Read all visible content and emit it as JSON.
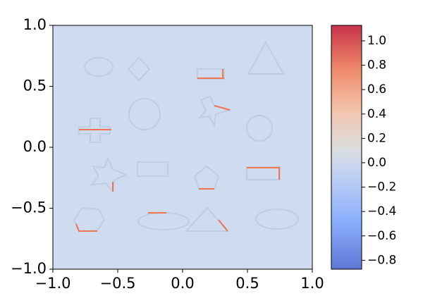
{
  "chart_data": {
    "type": "heatmap",
    "xlim": [
      -1,
      1
    ],
    "ylim": [
      -1,
      1
    ],
    "xticks": [
      {
        "value": -1,
        "label": "−1.0"
      },
      {
        "value": -0.5,
        "label": "−0.5"
      },
      {
        "value": 0,
        "label": "0.0"
      },
      {
        "value": 0.5,
        "label": "0.5"
      },
      {
        "value": 1,
        "label": "1.0"
      }
    ],
    "yticks": [
      {
        "value": -1,
        "label": "−1.0"
      },
      {
        "value": -0.5,
        "label": "−0.5"
      },
      {
        "value": 0,
        "label": "0.0"
      },
      {
        "value": 0.5,
        "label": "0.5"
      },
      {
        "value": 1,
        "label": "1.0"
      }
    ],
    "colormap": "coolwarm",
    "clim": [
      -0.873,
      1.127
    ],
    "cticks": [
      {
        "value": -0.8,
        "label": "−0.8"
      },
      {
        "value": -0.6,
        "label": "−0.6"
      },
      {
        "value": -0.4,
        "label": "−0.4"
      },
      {
        "value": -0.2,
        "label": "−0.2"
      },
      {
        "value": 0,
        "label": "0.0"
      },
      {
        "value": 0.2,
        "label": "0.2"
      },
      {
        "value": 0.4,
        "label": "0.4"
      },
      {
        "value": 0.6,
        "label": "0.6"
      },
      {
        "value": 0.8,
        "label": "0.8"
      },
      {
        "value": 1,
        "label": "1.0"
      }
    ]
  }
}
